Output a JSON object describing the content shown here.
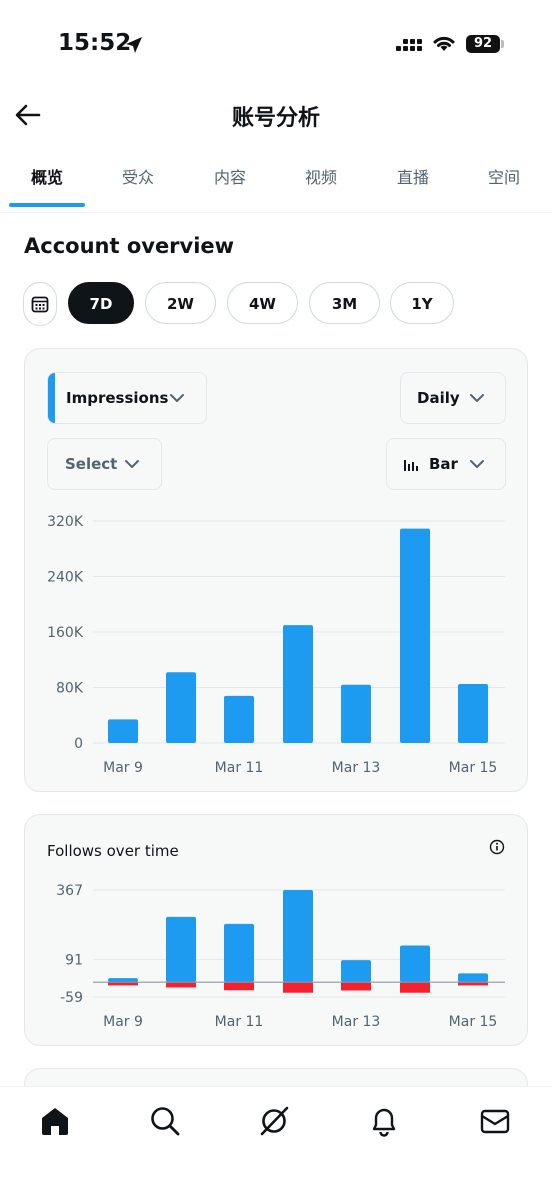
{
  "status_bar": {
    "time": "15:52",
    "battery": "92"
  },
  "header": {
    "title": "账号分析"
  },
  "tabs": [
    {
      "label": "概览",
      "active": true
    },
    {
      "label": "受众",
      "active": false
    },
    {
      "label": "内容",
      "active": false
    },
    {
      "label": "视频",
      "active": false
    },
    {
      "label": "直播",
      "active": false
    },
    {
      "label": "空间",
      "active": false
    }
  ],
  "overview": {
    "title": "Account overview",
    "ranges": [
      "7D",
      "2W",
      "4W",
      "3M",
      "1Y"
    ],
    "selected_range": "7D"
  },
  "impressions_card": {
    "metric": "Impressions",
    "interval": "Daily",
    "compare": "Select",
    "chart_type_label": "Bar"
  },
  "follows_card": {
    "title": "Follows over time"
  },
  "accent_color": "#1d9bf0",
  "negative_color": "#f4212e",
  "chart_data": [
    {
      "type": "bar",
      "categories": [
        "Mar 9",
        "Mar 10",
        "Mar 11",
        "Mar 12",
        "Mar 13",
        "Mar 14",
        "Mar 15"
      ],
      "x_tick_labels": [
        "Mar 9",
        "Mar 11",
        "Mar 13",
        "Mar 15"
      ],
      "values": [
        34000,
        102000,
        68000,
        170000,
        84000,
        309000,
        85000
      ],
      "y_ticks": [
        "320K",
        "240K",
        "160K",
        "80K",
        "0"
      ],
      "ylim": [
        0,
        320000
      ],
      "grid": true
    },
    {
      "type": "bar",
      "title": "Follows over time",
      "categories": [
        "Mar 9",
        "Mar 10",
        "Mar 11",
        "Mar 12",
        "Mar 13",
        "Mar 14",
        "Mar 15"
      ],
      "x_tick_labels": [
        "Mar 9",
        "Mar 11",
        "Mar 13",
        "Mar 15"
      ],
      "series": [
        {
          "values": [
            16,
            260,
            232,
            367,
            88,
            146,
            35
          ]
        },
        {
          "values": [
            -13,
            -21,
            -32,
            -42,
            -33,
            -42,
            -13
          ]
        }
      ],
      "y_ticks": [
        "367",
        "91",
        "-59"
      ],
      "ylim": [
        -59,
        367
      ],
      "grid": true
    }
  ]
}
